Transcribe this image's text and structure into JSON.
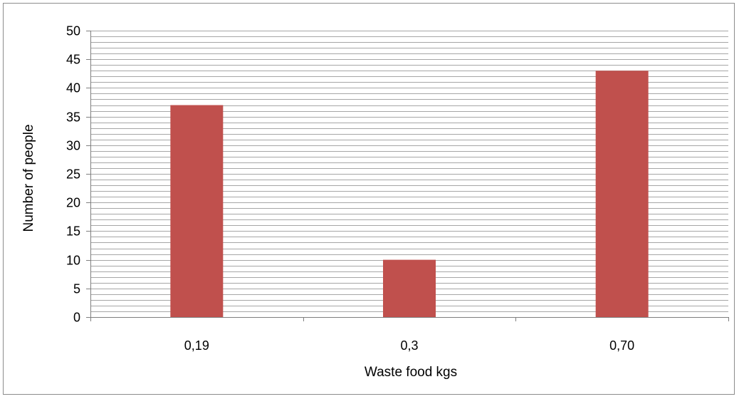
{
  "chart_data": {
    "type": "bar",
    "title": "",
    "xlabel": "Waste food kgs",
    "ylabel": "Number of people",
    "categories": [
      "0,19",
      "0,3",
      "0,70"
    ],
    "series": [
      {
        "values": [
          37,
          10,
          43
        ],
        "color": "#c0504d"
      }
    ],
    "ylim": [
      0,
      50
    ],
    "y_major_step": 5,
    "y_minor_step": 1,
    "y_ticks": [
      "0",
      "5",
      "10",
      "15",
      "20",
      "25",
      "30",
      "35",
      "40",
      "45",
      "50"
    ],
    "grid": true,
    "legend": "none",
    "colors": {
      "bar": "#c0504d",
      "grid": "#a6a6a6",
      "axis": "#7f7f7f"
    }
  }
}
